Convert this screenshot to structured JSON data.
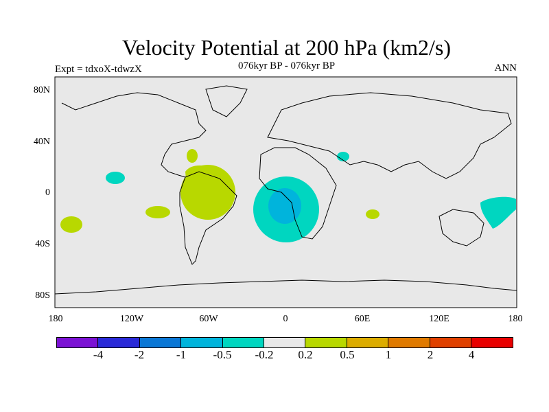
{
  "header": {
    "title": "Velocity Potential at 200 hPa (km2/s)",
    "subtitle": "076kyr BP - 076kyr BP",
    "left_label": "Expt = tdxoX-tdwzX",
    "right_label": "ANN"
  },
  "axes": {
    "lat_ticks": [
      "80N",
      "40N",
      "0",
      "40S",
      "80S"
    ],
    "lon_ticks": [
      "180",
      "120W",
      "60W",
      "0",
      "60E",
      "120E",
      "180"
    ]
  },
  "colorbar": {
    "colors": [
      "#7b12d4",
      "#2a2ad8",
      "#0a77d6",
      "#00b4dc",
      "#00d6c0",
      "#e8e8e8",
      "#b8d800",
      "#dcac00",
      "#e07a00",
      "#e04000",
      "#e80000"
    ],
    "labels": [
      "-4",
      "-2",
      "-1",
      "-0.5",
      "-0.2",
      "0.2",
      "0.5",
      "1",
      "2",
      "4"
    ]
  },
  "map": {
    "ocean_color": "#e8e8e8",
    "positive_color": "#b8d800",
    "negative_light_color": "#00d6c0",
    "negative_dark_color": "#00b4dc"
  }
}
